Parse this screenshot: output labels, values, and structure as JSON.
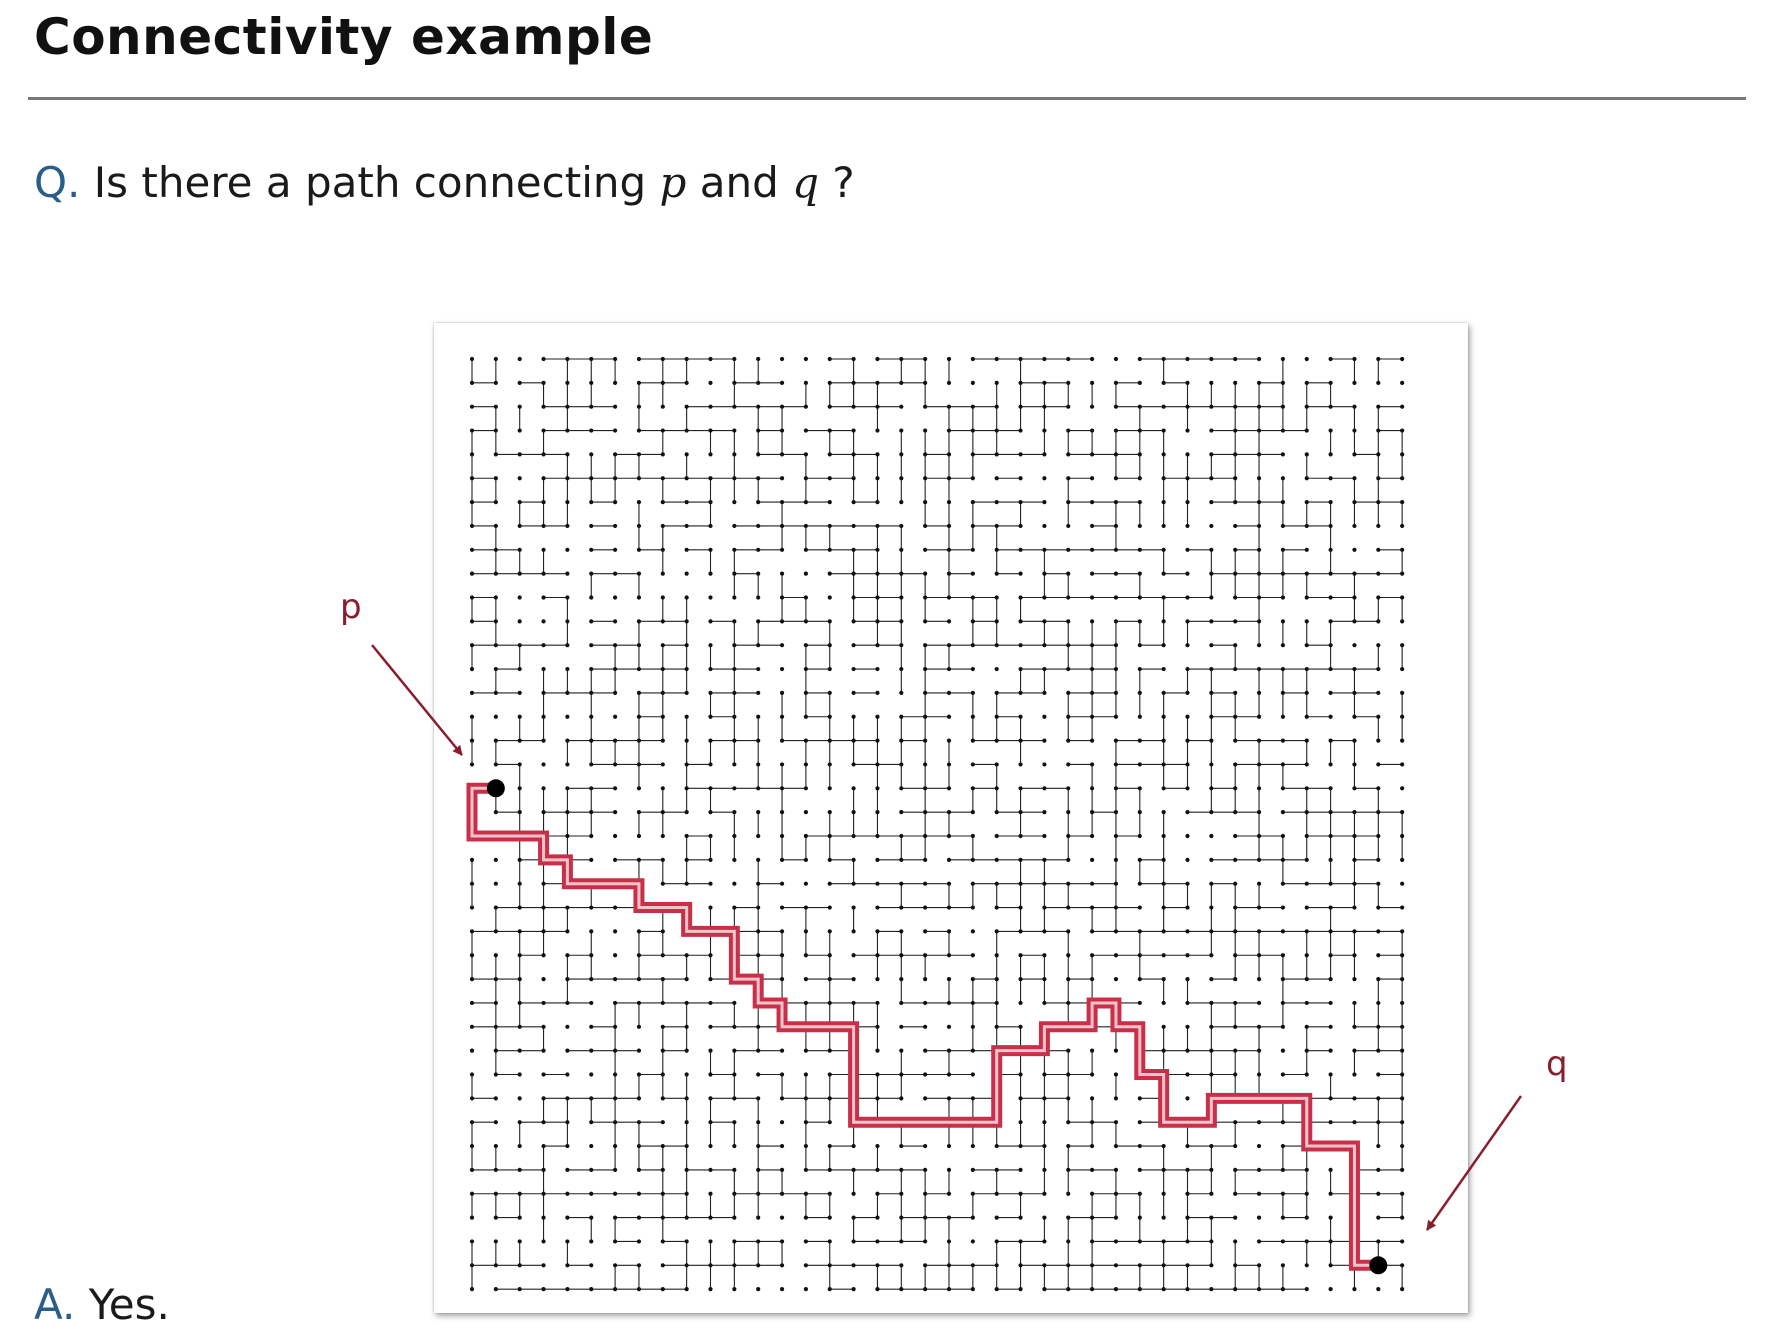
{
  "slide": {
    "title": "Connectivity example"
  },
  "question": {
    "label": "Q.",
    "text_before": "Is there a path connecting",
    "var_p": "p",
    "text_mid": "and",
    "var_q": "q",
    "text_after": "?"
  },
  "answer": {
    "label": "A.",
    "text": "Yes."
  },
  "diagram": {
    "grid_size": 40,
    "node_color": "#111111",
    "edge_color": "#222222",
    "path_color": "#c8304a",
    "path_inner_color": "#f3c3cb",
    "arrow_color": "#8b1e2e",
    "label_p": "p",
    "label_q": "q",
    "p_node": [
      1,
      18
    ],
    "q_node": [
      38,
      38
    ],
    "path_description": "staircase from p down-right to q",
    "path": [
      [
        1,
        18
      ],
      [
        0,
        18
      ],
      [
        0,
        20
      ],
      [
        3,
        20
      ],
      [
        3,
        21
      ],
      [
        4,
        21
      ],
      [
        4,
        22
      ],
      [
        7,
        22
      ],
      [
        7,
        23
      ],
      [
        9,
        23
      ],
      [
        9,
        24
      ],
      [
        11,
        24
      ],
      [
        11,
        26
      ],
      [
        12,
        26
      ],
      [
        12,
        27
      ],
      [
        13,
        27
      ],
      [
        13,
        28
      ],
      [
        16,
        28
      ],
      [
        16,
        32
      ],
      [
        22,
        32
      ],
      [
        22,
        29
      ],
      [
        24,
        29
      ],
      [
        24,
        28
      ],
      [
        26,
        28
      ],
      [
        26,
        27
      ],
      [
        27,
        27
      ],
      [
        27,
        28
      ],
      [
        28,
        28
      ],
      [
        28,
        30
      ],
      [
        29,
        30
      ],
      [
        29,
        32
      ],
      [
        31,
        32
      ],
      [
        31,
        31
      ],
      [
        35,
        31
      ],
      [
        35,
        33
      ],
      [
        37,
        33
      ],
      [
        37,
        38
      ],
      [
        38,
        38
      ]
    ]
  }
}
